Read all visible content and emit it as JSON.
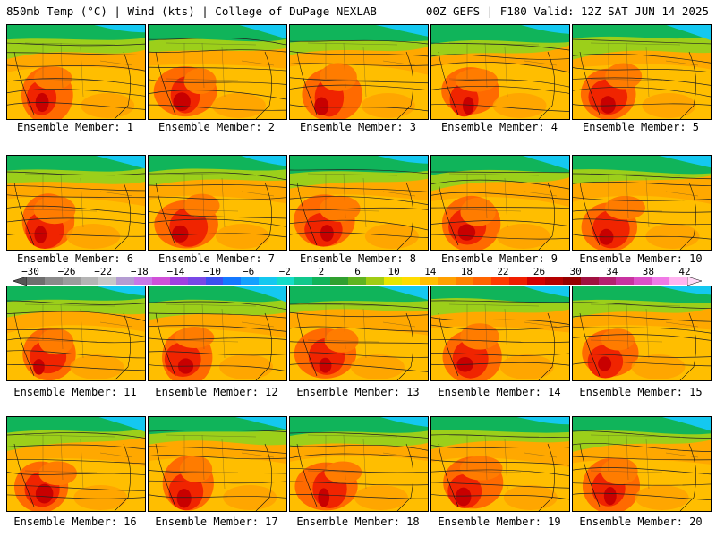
{
  "header": {
    "left_title": "850mb Temp (°C) | Wind (kts) | College of DuPage NEXLAB",
    "right_title": "00Z GEFS | F180 Valid: 12Z SAT JUN 14 2025"
  },
  "members": [
    {
      "label": "Ensemble Member: 1"
    },
    {
      "label": "Ensemble Member: 2"
    },
    {
      "label": "Ensemble Member: 3"
    },
    {
      "label": "Ensemble Member: 4"
    },
    {
      "label": "Ensemble Member: 5"
    },
    {
      "label": "Ensemble Member: 6"
    },
    {
      "label": "Ensemble Member: 7"
    },
    {
      "label": "Ensemble Member: 8"
    },
    {
      "label": "Ensemble Member: 9"
    },
    {
      "label": "Ensemble Member: 10"
    },
    {
      "label": "Ensemble Member: 11"
    },
    {
      "label": "Ensemble Member: 12"
    },
    {
      "label": "Ensemble Member: 13"
    },
    {
      "label": "Ensemble Member: 14"
    },
    {
      "label": "Ensemble Member: 15"
    },
    {
      "label": "Ensemble Member: 16"
    },
    {
      "label": "Ensemble Member: 17"
    },
    {
      "label": "Ensemble Member: 18"
    },
    {
      "label": "Ensemble Member: 19"
    },
    {
      "label": "Ensemble Member: 20"
    }
  ],
  "colorbar": {
    "ticks": [
      "−30",
      "−26",
      "−22",
      "−18",
      "−14",
      "−10",
      "−6",
      "−2",
      "2",
      "6",
      "10",
      "14",
      "18",
      "22",
      "26",
      "30",
      "34",
      "38",
      "42"
    ],
    "colors": [
      "#6e6e6e",
      "#8a8a8a",
      "#9c9c9c",
      "#b4b4b4",
      "#c8c8c8",
      "#b49cd2",
      "#c878e6",
      "#d050d8",
      "#a040e0",
      "#7848e6",
      "#3c50f0",
      "#1478ff",
      "#14a0ff",
      "#14c8f0",
      "#14dcc8",
      "#10c88c",
      "#10b45a",
      "#30a030",
      "#60b420",
      "#a0cc14",
      "#e6e600",
      "#ffdc00",
      "#ffbe00",
      "#ffa000",
      "#ff8200",
      "#ff6400",
      "#ff3c00",
      "#f01e00",
      "#d20000",
      "#b40000",
      "#960000",
      "#a01040",
      "#b42070",
      "#c832a0",
      "#dc50c8",
      "#f07ae6",
      "#ffb4f0"
    ]
  }
}
